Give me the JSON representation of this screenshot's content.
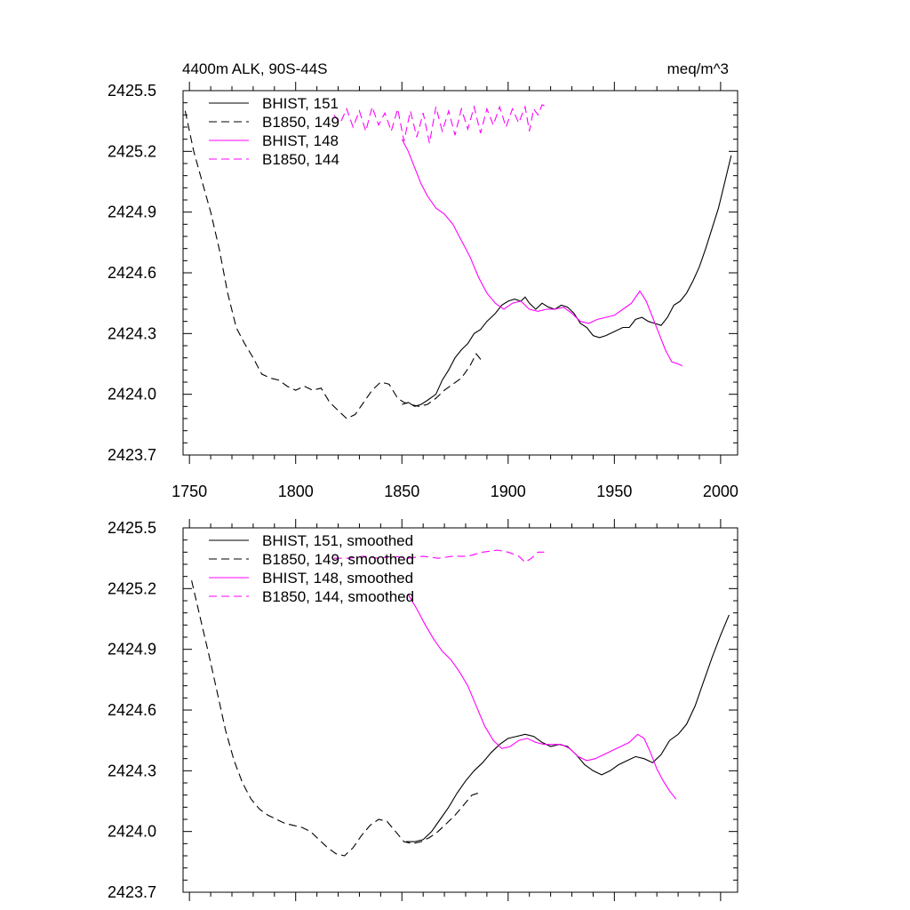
{
  "chart_data": [
    {
      "type": "line",
      "title_left": "4400m ALK, 90S-44S",
      "title_right": "meq/m^3",
      "xlabel": "",
      "ylabel": "",
      "xlim": [
        1747,
        2008
      ],
      "ylim": [
        2423.7,
        2425.5
      ],
      "xticks": [
        1750,
        1800,
        1850,
        1900,
        1950,
        2000
      ],
      "xtick_labels": [
        "1750",
        "1800",
        "1850",
        "1900",
        "1950",
        "2000"
      ],
      "yticks": [
        2423.7,
        2424.0,
        2424.3,
        2424.6,
        2424.9,
        2425.2,
        2425.5
      ],
      "ytick_labels": [
        "2423.7",
        "2424.0",
        "2424.3",
        "2424.6",
        "2424.9",
        "2425.2",
        "2425.5"
      ],
      "legend": "top-left",
      "series": [
        {
          "name": "BHIST, 151",
          "color": "#000000",
          "dash": "solid",
          "x": [
            1850,
            1853,
            1856,
            1859,
            1862,
            1866,
            1869,
            1872,
            1875,
            1878,
            1881,
            1884,
            1887,
            1890,
            1894,
            1897,
            1900,
            1903,
            1906,
            1908,
            1910,
            1913,
            1916,
            1919,
            1922,
            1925,
            1928,
            1931,
            1934,
            1937,
            1940,
            1943,
            1946,
            1950,
            1954,
            1957,
            1960,
            1963,
            1966,
            1969,
            1972,
            1975,
            1978,
            1981,
            1984,
            1987,
            1990,
            1993,
            1996,
            1999,
            2002,
            2005
          ],
          "y": [
            2423.95,
            2423.96,
            2423.94,
            2423.95,
            2423.97,
            2424.0,
            2424.07,
            2424.12,
            2424.18,
            2424.22,
            2424.25,
            2424.3,
            2424.32,
            2424.36,
            2424.4,
            2424.44,
            2424.46,
            2424.47,
            2424.46,
            2424.48,
            2424.45,
            2424.42,
            2424.45,
            2424.43,
            2424.42,
            2424.44,
            2424.43,
            2424.4,
            2424.35,
            2424.33,
            2424.29,
            2424.28,
            2424.29,
            2424.31,
            2424.33,
            2424.33,
            2424.37,
            2424.38,
            2424.36,
            2424.35,
            2424.34,
            2424.38,
            2424.44,
            2424.46,
            2424.5,
            2424.56,
            2424.63,
            2424.72,
            2424.82,
            2424.92,
            2425.05,
            2425.18
          ]
        },
        {
          "name": "B1850, 149",
          "color": "#000000",
          "dash": "dashed",
          "x": [
            1748,
            1752,
            1756,
            1760,
            1764,
            1768,
            1772,
            1776,
            1780,
            1784,
            1788,
            1792,
            1796,
            1800,
            1804,
            1808,
            1812,
            1816,
            1820,
            1824,
            1828,
            1832,
            1836,
            1840,
            1844,
            1848,
            1851,
            1854,
            1858,
            1862,
            1866,
            1870,
            1874,
            1878,
            1882,
            1885,
            1888
          ],
          "y": [
            2425.4,
            2425.2,
            2425.05,
            2424.9,
            2424.72,
            2424.5,
            2424.33,
            2424.25,
            2424.18,
            2424.1,
            2424.08,
            2424.07,
            2424.04,
            2424.02,
            2424.04,
            2424.02,
            2424.03,
            2423.96,
            2423.92,
            2423.88,
            2423.9,
            2423.96,
            2424.02,
            2424.06,
            2424.05,
            2423.98,
            2423.96,
            2423.95,
            2423.94,
            2423.95,
            2423.98,
            2424.02,
            2424.05,
            2424.08,
            2424.14,
            2424.2,
            2424.16
          ]
        },
        {
          "name": "BHIST, 148",
          "color": "#ff00ff",
          "dash": "solid",
          "x": [
            1850,
            1853,
            1856,
            1859,
            1862,
            1866,
            1870,
            1874,
            1878,
            1882,
            1886,
            1890,
            1894,
            1898,
            1902,
            1906,
            1910,
            1914,
            1918,
            1922,
            1926,
            1930,
            1934,
            1938,
            1942,
            1946,
            1950,
            1954,
            1958,
            1962,
            1965,
            1968,
            1971,
            1974,
            1977,
            1980,
            1982
          ],
          "y": [
            2425.26,
            2425.2,
            2425.12,
            2425.04,
            2424.98,
            2424.92,
            2424.89,
            2424.84,
            2424.76,
            2424.68,
            2424.58,
            2424.5,
            2424.45,
            2424.42,
            2424.45,
            2424.46,
            2424.42,
            2424.41,
            2424.42,
            2424.42,
            2424.43,
            2424.4,
            2424.36,
            2424.35,
            2424.37,
            2424.38,
            2424.39,
            2424.42,
            2424.45,
            2424.51,
            2424.46,
            2424.38,
            2424.3,
            2424.22,
            2424.16,
            2424.15,
            2424.14
          ]
        },
        {
          "name": "B1850, 144",
          "color": "#ff00ff",
          "dash": "dashed",
          "x": [
            1818,
            1821,
            1824,
            1827,
            1830,
            1833,
            1836,
            1839,
            1842,
            1845,
            1848,
            1851,
            1854,
            1857,
            1860,
            1863,
            1866,
            1869,
            1872,
            1875,
            1878,
            1881,
            1884,
            1887,
            1890,
            1893,
            1896,
            1899,
            1902,
            1905,
            1908,
            1910,
            1912,
            1914,
            1916,
            1918
          ],
          "y": [
            2425.38,
            2425.34,
            2425.41,
            2425.32,
            2425.4,
            2425.3,
            2425.42,
            2425.33,
            2425.39,
            2425.3,
            2425.41,
            2425.25,
            2425.4,
            2425.27,
            2425.39,
            2425.24,
            2425.42,
            2425.3,
            2425.4,
            2425.28,
            2425.41,
            2425.31,
            2425.42,
            2425.29,
            2425.41,
            2425.33,
            2425.42,
            2425.32,
            2425.41,
            2425.34,
            2425.42,
            2425.3,
            2425.41,
            2425.38,
            2425.43,
            2425.42
          ]
        }
      ]
    },
    {
      "type": "line",
      "title_left": "",
      "title_right": "",
      "xlabel": "",
      "ylabel": "",
      "xlim": [
        1747,
        2008
      ],
      "ylim": [
        2423.7,
        2425.5
      ],
      "xticks": [
        1750,
        1800,
        1850,
        1900,
        1950,
        2000
      ],
      "yticks": [
        2423.7,
        2424.0,
        2424.3,
        2424.6,
        2424.9,
        2425.2,
        2425.5
      ],
      "ytick_labels": [
        "2423.7",
        "2424.0",
        "2424.3",
        "2424.6",
        "2424.9",
        "2425.2",
        "2425.5"
      ],
      "legend": "top-left",
      "series": [
        {
          "name": "BHIST, 151, smoothed",
          "color": "#000000",
          "dash": "solid",
          "x": [
            1852,
            1856,
            1860,
            1864,
            1868,
            1872,
            1876,
            1880,
            1884,
            1888,
            1892,
            1896,
            1900,
            1904,
            1908,
            1912,
            1916,
            1920,
            1924,
            1928,
            1932,
            1936,
            1940,
            1944,
            1948,
            1952,
            1956,
            1960,
            1964,
            1968,
            1972,
            1976,
            1980,
            1984,
            1988,
            1992,
            1996,
            2000,
            2004
          ],
          "y": [
            2423.95,
            2423.95,
            2423.96,
            2424.0,
            2424.06,
            2424.12,
            2424.19,
            2424.25,
            2424.3,
            2424.34,
            2424.39,
            2424.43,
            2424.46,
            2424.47,
            2424.48,
            2424.47,
            2424.44,
            2424.42,
            2424.43,
            2424.42,
            2424.38,
            2424.33,
            2424.3,
            2424.28,
            2424.3,
            2424.33,
            2424.35,
            2424.37,
            2424.36,
            2424.34,
            2424.38,
            2424.45,
            2424.48,
            2424.53,
            2424.62,
            2424.74,
            2424.86,
            2424.97,
            2425.07
          ]
        },
        {
          "name": "B1850, 149, smoothed",
          "color": "#000000",
          "dash": "dashed",
          "x": [
            1751,
            1755,
            1759,
            1763,
            1767,
            1771,
            1775,
            1779,
            1783,
            1787,
            1791,
            1795,
            1799,
            1803,
            1807,
            1811,
            1815,
            1819,
            1823,
            1827,
            1831,
            1835,
            1839,
            1843,
            1847,
            1851,
            1855,
            1859,
            1863,
            1867,
            1871,
            1875,
            1879,
            1883,
            1886
          ],
          "y": [
            2425.24,
            2425.06,
            2424.88,
            2424.69,
            2424.5,
            2424.35,
            2424.24,
            2424.16,
            2424.11,
            2424.08,
            2424.06,
            2424.04,
            2424.03,
            2424.02,
            2424.0,
            2423.96,
            2423.92,
            2423.89,
            2423.88,
            2423.92,
            2423.98,
            2424.03,
            2424.06,
            2424.05,
            2424.0,
            2423.95,
            2423.94,
            2423.95,
            2423.97,
            2424.0,
            2424.04,
            2424.08,
            2424.13,
            2424.18,
            2424.19
          ]
        },
        {
          "name": "BHIST, 148, smoothed",
          "color": "#ff00ff",
          "dash": "solid",
          "x": [
            1853,
            1857,
            1861,
            1865,
            1869,
            1873,
            1877,
            1881,
            1885,
            1889,
            1893,
            1897,
            1901,
            1905,
            1909,
            1913,
            1917,
            1921,
            1925,
            1929,
            1933,
            1937,
            1941,
            1945,
            1949,
            1953,
            1957,
            1961,
            1964,
            1967,
            1970,
            1973,
            1976,
            1979
          ],
          "y": [
            2425.17,
            2425.1,
            2425.02,
            2424.95,
            2424.89,
            2424.85,
            2424.79,
            2424.72,
            2424.62,
            2424.52,
            2424.45,
            2424.41,
            2424.42,
            2424.45,
            2424.46,
            2424.44,
            2424.43,
            2424.43,
            2424.43,
            2424.41,
            2424.37,
            2424.35,
            2424.36,
            2424.38,
            2424.4,
            2424.42,
            2424.44,
            2424.48,
            2424.46,
            2424.39,
            2424.31,
            2424.25,
            2424.2,
            2424.16
          ]
        },
        {
          "name": "B1850, 144, smoothed",
          "color": "#ff00ff",
          "dash": "dashed",
          "x": [
            1818,
            1825,
            1832,
            1839,
            1846,
            1853,
            1860,
            1867,
            1874,
            1881,
            1888,
            1895,
            1900,
            1905,
            1908,
            1911,
            1914,
            1917
          ],
          "y": [
            2425.35,
            2425.35,
            2425.36,
            2425.35,
            2425.36,
            2425.35,
            2425.36,
            2425.35,
            2425.36,
            2425.36,
            2425.38,
            2425.39,
            2425.38,
            2425.36,
            2425.33,
            2425.35,
            2425.38,
            2425.38
          ]
        }
      ]
    }
  ]
}
